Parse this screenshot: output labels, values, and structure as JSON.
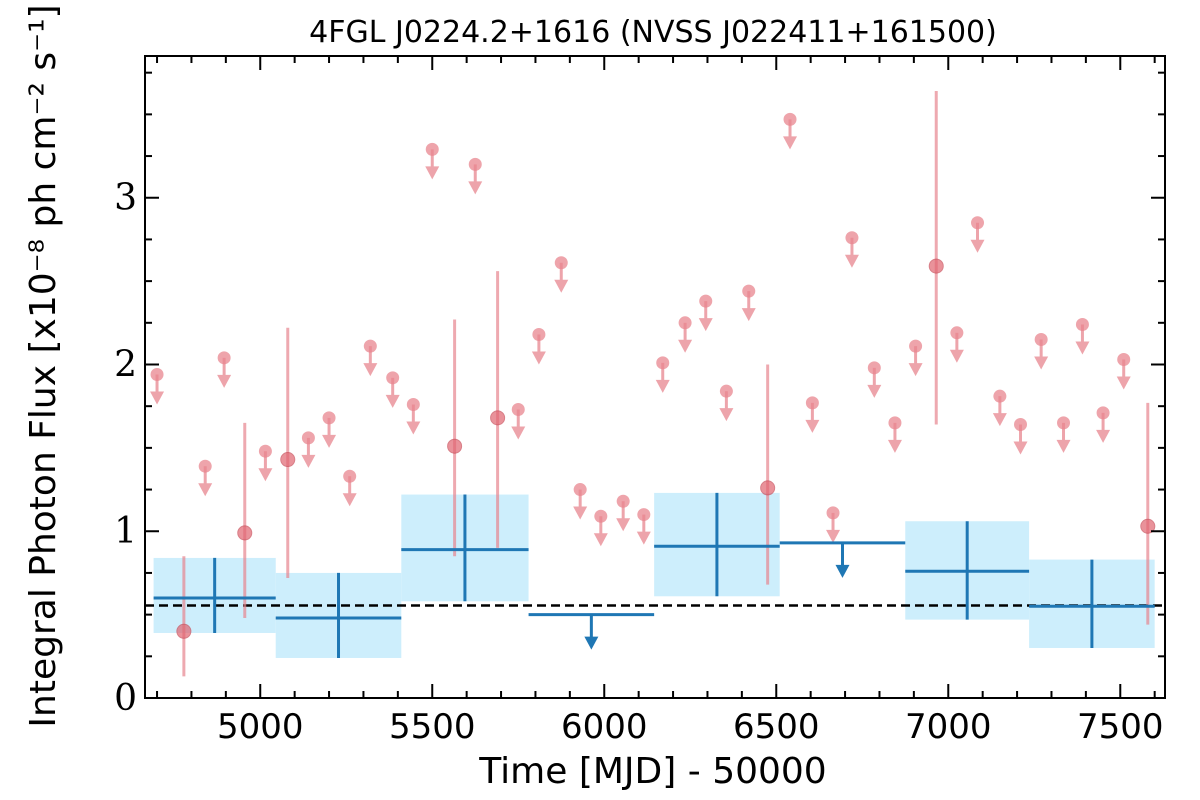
{
  "chart_data": {
    "type": "scatter",
    "title": "4FGL J0224.2+1616 (NVSS J022411+161500)",
    "xlabel": "Time [MJD] - 50000",
    "ylabel": "Integral Photon Flux [x10⁻⁸ ph cm⁻² s⁻¹]",
    "xlim": [
      4665,
      7630
    ],
    "ylim": [
      0,
      3.85
    ],
    "x_ticks": [
      5000,
      5500,
      6000,
      6500,
      7000,
      7500
    ],
    "y_ticks": [
      0,
      1,
      2,
      3
    ],
    "grid": false,
    "mean_flux": 0.555,
    "colors": {
      "short_bins": "#e8868f",
      "long_bins": "#1f77b4",
      "long_bins_band": "#cdeefc",
      "mean_line": "#000000"
    },
    "series": [
      {
        "points": [
          {
            "x": 4778,
            "y": 0.4,
            "yerr": [
              0.13,
              0.85
            ]
          },
          {
            "x": 4955,
            "y": 0.99,
            "yerr": [
              0.48,
              1.65
            ]
          },
          {
            "x": 5080,
            "y": 1.43,
            "yerr": [
              0.72,
              2.22
            ]
          },
          {
            "x": 5565,
            "y": 1.51,
            "yerr": [
              0.85,
              2.27
            ]
          },
          {
            "x": 5690,
            "y": 1.68,
            "yerr": [
              0.9,
              2.56
            ]
          },
          {
            "x": 6475,
            "y": 1.26,
            "yerr": [
              0.68,
              2.0
            ]
          },
          {
            "x": 6965,
            "y": 2.59,
            "yerr": [
              1.64,
              3.64
            ]
          },
          {
            "x": 7580,
            "y": 1.03,
            "yerr": [
              0.44,
              1.77
            ]
          }
        ],
        "upper_limits": [
          {
            "x": 4700,
            "y": 1.94
          },
          {
            "x": 4840,
            "y": 1.39
          },
          {
            "x": 4895,
            "y": 2.04
          },
          {
            "x": 5015,
            "y": 1.48
          },
          {
            "x": 5140,
            "y": 1.56
          },
          {
            "x": 5200,
            "y": 1.68
          },
          {
            "x": 5260,
            "y": 1.33
          },
          {
            "x": 5320,
            "y": 2.11
          },
          {
            "x": 5385,
            "y": 1.92
          },
          {
            "x": 5445,
            "y": 1.76
          },
          {
            "x": 5500,
            "y": 3.29
          },
          {
            "x": 5625,
            "y": 3.2
          },
          {
            "x": 5750,
            "y": 1.73
          },
          {
            "x": 5810,
            "y": 2.18
          },
          {
            "x": 5875,
            "y": 2.61
          },
          {
            "x": 5930,
            "y": 1.25
          },
          {
            "x": 5990,
            "y": 1.09
          },
          {
            "x": 6055,
            "y": 1.18
          },
          {
            "x": 6115,
            "y": 1.1
          },
          {
            "x": 6170,
            "y": 2.01
          },
          {
            "x": 6235,
            "y": 2.25
          },
          {
            "x": 6295,
            "y": 2.38
          },
          {
            "x": 6355,
            "y": 1.84
          },
          {
            "x": 6420,
            "y": 2.44
          },
          {
            "x": 6540,
            "y": 3.47
          },
          {
            "x": 6605,
            "y": 1.77
          },
          {
            "x": 6665,
            "y": 1.11
          },
          {
            "x": 6720,
            "y": 2.76
          },
          {
            "x": 6785,
            "y": 1.98
          },
          {
            "x": 6845,
            "y": 1.65
          },
          {
            "x": 6905,
            "y": 2.11
          },
          {
            "x": 7025,
            "y": 2.19
          },
          {
            "x": 7085,
            "y": 2.85
          },
          {
            "x": 7150,
            "y": 1.81
          },
          {
            "x": 7210,
            "y": 1.64
          },
          {
            "x": 7270,
            "y": 2.15
          },
          {
            "x": 7335,
            "y": 1.65
          },
          {
            "x": 7390,
            "y": 2.24
          },
          {
            "x": 7450,
            "y": 1.71
          },
          {
            "x": 7510,
            "y": 2.03
          }
        ]
      },
      {
        "bins": [
          {
            "x0": 4690,
            "x1": 5045,
            "y": 0.6,
            "ylo": 0.39,
            "yhi": 0.84
          },
          {
            "x0": 5045,
            "x1": 5410,
            "y": 0.48,
            "ylo": 0.24,
            "yhi": 0.75
          },
          {
            "x0": 5410,
            "x1": 5780,
            "y": 0.89,
            "ylo": 0.58,
            "yhi": 1.22
          },
          {
            "x0": 6145,
            "x1": 6510,
            "y": 0.91,
            "ylo": 0.61,
            "yhi": 1.23
          },
          {
            "x0": 6875,
            "x1": 7235,
            "y": 0.76,
            "ylo": 0.47,
            "yhi": 1.06
          },
          {
            "x0": 7235,
            "x1": 7600,
            "y": 0.55,
            "ylo": 0.3,
            "yhi": 0.83
          }
        ],
        "upper_limits": [
          {
            "x0": 5780,
            "x1": 6145,
            "y": 0.5
          },
          {
            "x0": 6510,
            "x1": 6875,
            "y": 0.93
          }
        ]
      }
    ]
  }
}
